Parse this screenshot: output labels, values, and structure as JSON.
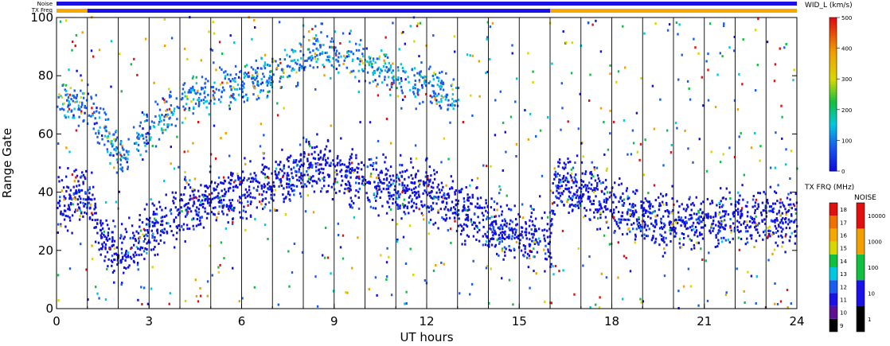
{
  "chart_data": {
    "type": "scatter",
    "xlabel": "UT hours",
    "ylabel": "Range Gate",
    "xlim": [
      0,
      24
    ],
    "ylim": [
      0,
      100
    ],
    "x_ticks": [
      "0",
      "3",
      "6",
      "9",
      "12",
      "15",
      "18",
      "21",
      "24"
    ],
    "y_ticks": [
      "0",
      "20",
      "40",
      "60",
      "80",
      "100"
    ],
    "grid": "vertical lines every 1 hour",
    "top_bars": {
      "noise_label": "Noise",
      "txfreq_label": "TX Freq",
      "noise_color": "#1a10e8",
      "txfreq_segments": [
        {
          "start": 0,
          "end": 1,
          "color": "#f5a800"
        },
        {
          "start": 1,
          "end": 16,
          "color": "#1a10e8"
        },
        {
          "start": 16,
          "end": 24,
          "color": "#f5a800"
        }
      ]
    },
    "main_colorbar": {
      "title": "WID_L (km/s)",
      "range": [
        0,
        500
      ],
      "ticks": [
        "0",
        "100",
        "200",
        "300",
        "400",
        "500"
      ]
    },
    "freq_colorbar": {
      "title": "TX FRQ (MHz)",
      "ticks": [
        "9",
        "10",
        "11",
        "12",
        "13",
        "14",
        "15",
        "16",
        "17",
        "18"
      ]
    },
    "noise_colorbar": {
      "title": "NOISE",
      "ticks": [
        "1",
        "10",
        "100",
        "1000",
        "10000"
      ]
    },
    "dominant_band": {
      "description": "dense echo band (low spectral width) range gate centre by UT hour",
      "x": [
        0,
        1,
        1.5,
        2,
        2.5,
        3,
        4,
        5,
        6,
        7,
        8,
        8.5,
        9,
        10,
        11,
        12,
        13,
        14,
        15,
        16,
        16.1,
        17,
        18,
        19,
        20,
        21,
        22,
        23,
        24
      ],
      "y": [
        38,
        38,
        22,
        20,
        22,
        27,
        32,
        37,
        41,
        43,
        47,
        49,
        47,
        43,
        41,
        40,
        34,
        29,
        25,
        22,
        43,
        40,
        35,
        31,
        30,
        30,
        31,
        31,
        31
      ]
    },
    "upper_band": {
      "description": "scattered higher-width echoes, range gate centre by UT hour",
      "x": [
        0,
        1,
        2,
        3,
        4,
        5,
        6,
        7,
        8,
        8.5,
        9,
        10,
        11,
        12,
        13
      ],
      "y": [
        72,
        70,
        52,
        62,
        70,
        75,
        78,
        80,
        86,
        90,
        88,
        84,
        80,
        76,
        72
      ]
    }
  }
}
